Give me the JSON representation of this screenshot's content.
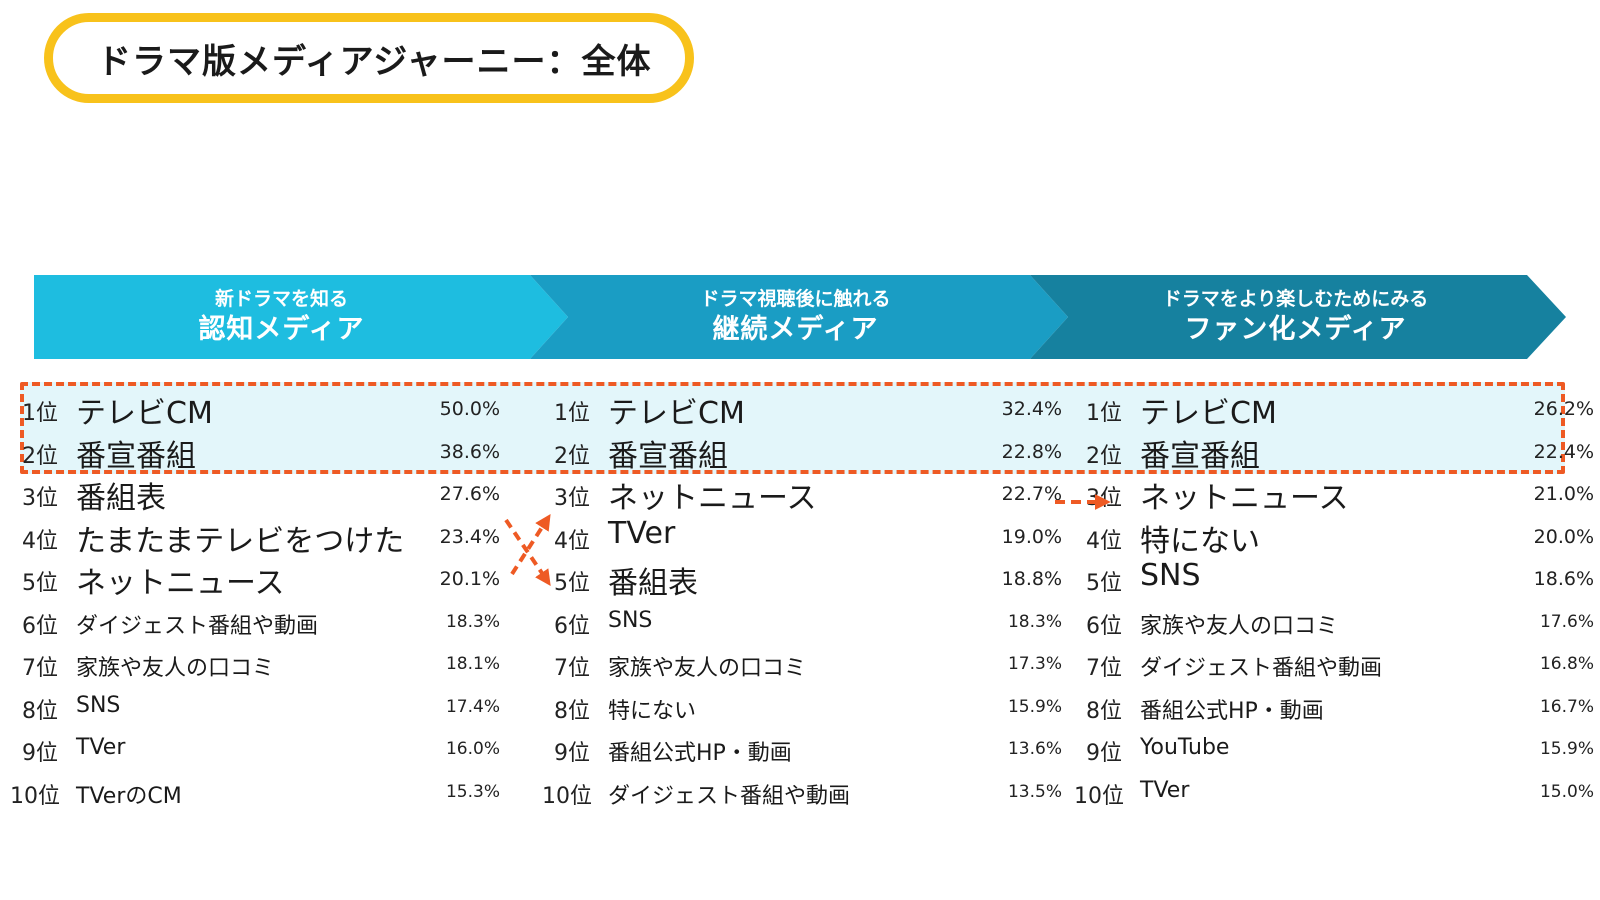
{
  "title": "ドラマ版メディアジャーニー：全体",
  "colors": {
    "title_border": "#F8C21B",
    "chevron_1": "#1EBDE0",
    "chevron_2": "#1A9DC4",
    "chevron_3": "#16819F",
    "highlight_fill": "#E3F6FA",
    "accent_orange": "#EE5A24"
  },
  "phases": [
    {
      "sub": "新ドラマを知る",
      "main": "認知メディア"
    },
    {
      "sub": "ドラマ視聴後に触れる",
      "main": "継続メディア"
    },
    {
      "sub": "ドラマをより楽しむためにみる",
      "main": "ファン化メディア"
    }
  ],
  "columns": [
    {
      "rows": [
        {
          "rank": "1位",
          "label": "テレビCM",
          "pct": "50.0%"
        },
        {
          "rank": "2位",
          "label": "番宣番組",
          "pct": "38.6%"
        },
        {
          "rank": "3位",
          "label": "番組表",
          "pct": "27.6%"
        },
        {
          "rank": "4位",
          "label": "たまたまテレビをつけた",
          "pct": "23.4%"
        },
        {
          "rank": "5位",
          "label": "ネットニュース",
          "pct": "20.1%"
        },
        {
          "rank": "6位",
          "label": "ダイジェスト番組や動画",
          "pct": "18.3%"
        },
        {
          "rank": "7位",
          "label": "家族や友人の口コミ",
          "pct": "18.1%"
        },
        {
          "rank": "8位",
          "label": "SNS",
          "pct": "17.4%"
        },
        {
          "rank": "9位",
          "label": "TVer",
          "pct": "16.0%"
        },
        {
          "rank": "10位",
          "label": "TVerのCM",
          "pct": "15.3%"
        }
      ]
    },
    {
      "rows": [
        {
          "rank": "1位",
          "label": "テレビCM",
          "pct": "32.4%"
        },
        {
          "rank": "2位",
          "label": "番宣番組",
          "pct": "22.8%"
        },
        {
          "rank": "3位",
          "label": "ネットニュース",
          "pct": "22.7%"
        },
        {
          "rank": "4位",
          "label": "TVer",
          "pct": "19.0%"
        },
        {
          "rank": "5位",
          "label": "番組表",
          "pct": "18.8%"
        },
        {
          "rank": "6位",
          "label": "SNS",
          "pct": "18.3%"
        },
        {
          "rank": "7位",
          "label": "家族や友人の口コミ",
          "pct": "17.3%"
        },
        {
          "rank": "8位",
          "label": "特にない",
          "pct": "15.9%"
        },
        {
          "rank": "9位",
          "label": "番組公式HP・動画",
          "pct": "13.6%"
        },
        {
          "rank": "10位",
          "label": "ダイジェスト番組や動画",
          "pct": "13.5%"
        }
      ]
    },
    {
      "rows": [
        {
          "rank": "1位",
          "label": "テレビCM",
          "pct": "26.2%"
        },
        {
          "rank": "2位",
          "label": "番宣番組",
          "pct": "22.4%"
        },
        {
          "rank": "3位",
          "label": "ネットニュース",
          "pct": "21.0%"
        },
        {
          "rank": "4位",
          "label": "特にない",
          "pct": "20.0%"
        },
        {
          "rank": "5位",
          "label": "SNS",
          "pct": "18.6%"
        },
        {
          "rank": "6位",
          "label": "家族や友人の口コミ",
          "pct": "17.6%"
        },
        {
          "rank": "7位",
          "label": "ダイジェスト番組や動画",
          "pct": "16.8%"
        },
        {
          "rank": "8位",
          "label": "番組公式HP・動画",
          "pct": "16.7%"
        },
        {
          "rank": "9位",
          "label": "YouTube",
          "pct": "15.9%"
        },
        {
          "rank": "10位",
          "label": "TVer",
          "pct": "15.0%"
        }
      ]
    }
  ]
}
